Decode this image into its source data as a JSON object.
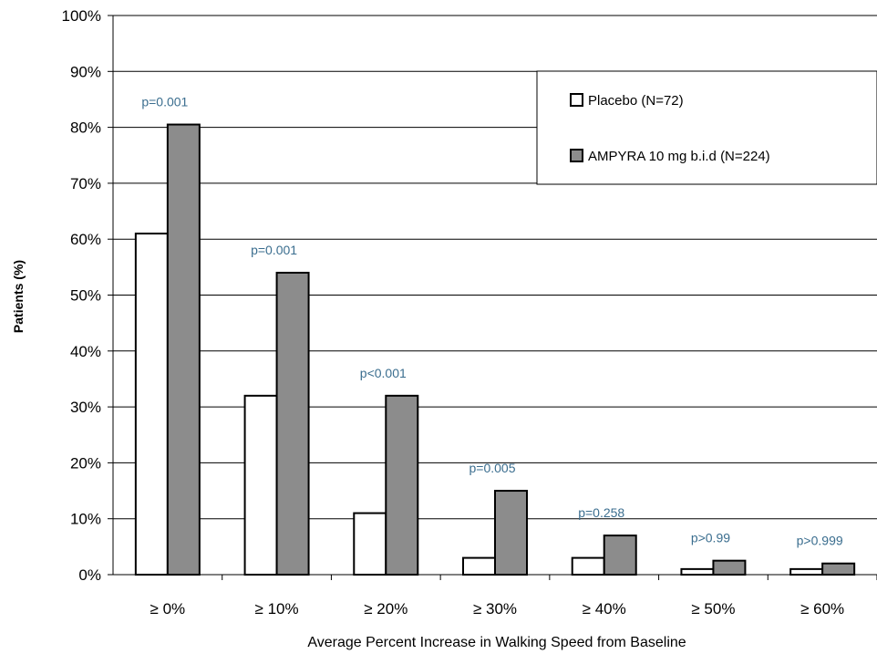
{
  "chart_data": {
    "type": "bar",
    "title": "",
    "xlabel": "Average Percent Increase in Walking Speed from Baseline",
    "ylabel": "Patients (%)",
    "ylim": [
      0,
      100
    ],
    "yticks": [
      "0%",
      "10%",
      "20%",
      "30%",
      "40%",
      "50%",
      "60%",
      "70%",
      "80%",
      "90%",
      "100%"
    ],
    "categories": [
      "≥ 0%",
      "≥ 10%",
      "≥ 20%",
      "≥ 30%",
      "≥ 40%",
      "≥ 50%",
      "≥ 60%"
    ],
    "series": [
      {
        "name": "Placebo (N=72)",
        "values": [
          61,
          32,
          11,
          3,
          3,
          1,
          1
        ],
        "color": "#ffffff"
      },
      {
        "name": "AMPYRA 10 mg b.i.d (N=224)",
        "values": [
          80.5,
          54,
          32,
          15,
          7,
          2.5,
          2
        ],
        "color": "#8c8c8c"
      }
    ],
    "annotations": [
      "p=0.001",
      "p=0.001",
      "p<0.001",
      "p=0.005",
      "p=0.258",
      "p>0.99",
      "p>0.999"
    ],
    "annotation_color": "#3b6e8f",
    "grid": true,
    "legend_position": "top-right"
  }
}
